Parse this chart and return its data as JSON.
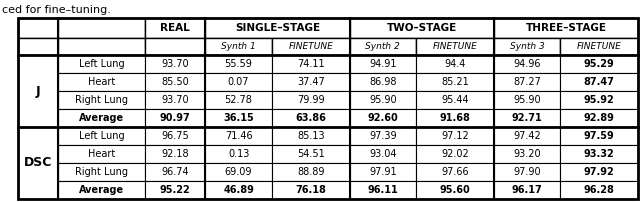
{
  "rows": [
    [
      "J",
      "Left Lung",
      "93.70",
      "55.59",
      "74.11",
      "94.91",
      "94.4",
      "94.96",
      "95.29"
    ],
    [
      "J",
      "Heart",
      "85.50",
      "0.07",
      "37.47",
      "86.98",
      "85.21",
      "87.27",
      "87.47"
    ],
    [
      "J",
      "Right Lung",
      "93.70",
      "52.78",
      "79.99",
      "95.90",
      "95.44",
      "95.90",
      "95.92"
    ],
    [
      "J",
      "Average",
      "90.97",
      "36.15",
      "63.86",
      "92.60",
      "91.68",
      "92.71",
      "92.89"
    ],
    [
      "DSC",
      "Left Lung",
      "96.75",
      "71.46",
      "85.13",
      "97.39",
      "97.12",
      "97.42",
      "97.59"
    ],
    [
      "DSC",
      "Heart",
      "92.18",
      "0.13",
      "54.51",
      "93.04",
      "92.02",
      "93.20",
      "93.32"
    ],
    [
      "DSC",
      "Right Lung",
      "96.74",
      "69.09",
      "88.89",
      "97.91",
      "97.66",
      "97.90",
      "97.92"
    ],
    [
      "DSC",
      "Average",
      "95.22",
      "46.89",
      "76.18",
      "96.11",
      "95.60",
      "96.17",
      "96.28"
    ]
  ],
  "sub_headers": [
    "",
    "",
    "",
    "Synth 1",
    "FINETUNE",
    "Synth 2",
    "FINETUNE",
    "Synth 3",
    "FINETUNE"
  ],
  "group_headers": [
    "SINGLE–STAGE",
    "TWO–STAGE",
    "THREE–STAGE"
  ],
  "top_text": "ced for fine–tuning.",
  "background_color": "#ffffff"
}
